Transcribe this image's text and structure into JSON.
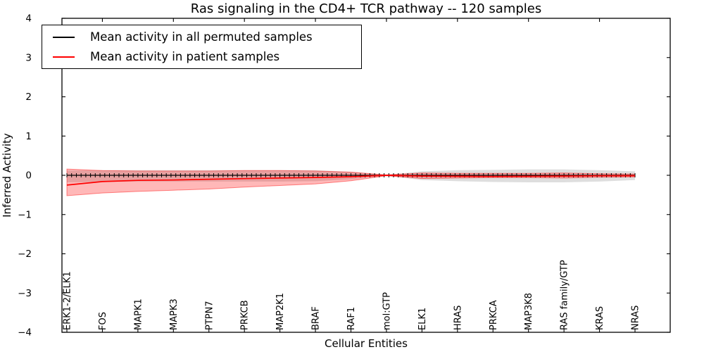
{
  "chart_data": {
    "type": "line",
    "title": "Ras signaling in the CD4+ TCR pathway -- 120 samples",
    "xlabel": "Cellular Entities",
    "ylabel": "Inferred Activity",
    "ylim": [
      -4,
      4
    ],
    "ytick_labels": [
      "4",
      "3",
      "2",
      "1",
      "0",
      "−1",
      "−2",
      "−3",
      "−4"
    ],
    "ytick_values": [
      4,
      3,
      2,
      1,
      0,
      -1,
      -2,
      -3,
      -4
    ],
    "grid": false,
    "legend_position": "upper left",
    "n_samples": 120,
    "categories": [
      "ERK1-2/ELK1",
      "FOS",
      "MAPK1",
      "MAPK3",
      "PTPN7",
      "PRKCB",
      "MAP2K1",
      "BRAF",
      "RAF1",
      "mol:GTP",
      "ELK1",
      "HRAS",
      "PRKCA",
      "MAP3K8",
      "RAS family/GTP",
      "KRAS",
      "NRAS"
    ],
    "series": [
      {
        "name": "Mean activity in all permuted samples",
        "color": "#000000",
        "band_color": "#999999",
        "marker": "vertical-tick",
        "values": [
          0,
          0,
          0,
          0,
          0,
          0,
          0,
          0,
          0,
          0,
          0,
          0,
          0,
          0,
          0,
          0,
          0
        ],
        "band_upper": [
          0.12,
          0.13,
          0.13,
          0.13,
          0.13,
          0.13,
          0.13,
          0.13,
          0.09,
          0.01,
          0.1,
          0.13,
          0.14,
          0.15,
          0.15,
          0.13,
          0.1
        ],
        "band_lower": [
          -0.18,
          -0.17,
          -0.16,
          -0.16,
          -0.16,
          -0.16,
          -0.16,
          -0.15,
          -0.1,
          -0.01,
          -0.12,
          -0.15,
          -0.17,
          -0.18,
          -0.18,
          -0.16,
          -0.12
        ]
      },
      {
        "name": "Mean activity in patient samples",
        "color": "#ff0000",
        "band_color": "#ff0000",
        "marker": "none",
        "values": [
          -0.25,
          -0.16,
          -0.13,
          -0.12,
          -0.1,
          -0.085,
          -0.07,
          -0.055,
          -0.035,
          0.0,
          -0.02,
          -0.025,
          -0.03,
          -0.025,
          -0.02,
          -0.012,
          -0.01
        ],
        "band_upper": [
          0.16,
          0.12,
          0.11,
          0.11,
          0.11,
          0.12,
          0.12,
          0.11,
          0.08,
          0.01,
          0.06,
          0.05,
          0.05,
          0.05,
          0.06,
          0.04,
          0.03
        ],
        "band_lower": [
          -0.52,
          -0.45,
          -0.41,
          -0.38,
          -0.35,
          -0.3,
          -0.26,
          -0.22,
          -0.14,
          -0.01,
          -0.08,
          -0.07,
          -0.06,
          -0.06,
          -0.07,
          -0.05,
          -0.04
        ]
      }
    ]
  }
}
